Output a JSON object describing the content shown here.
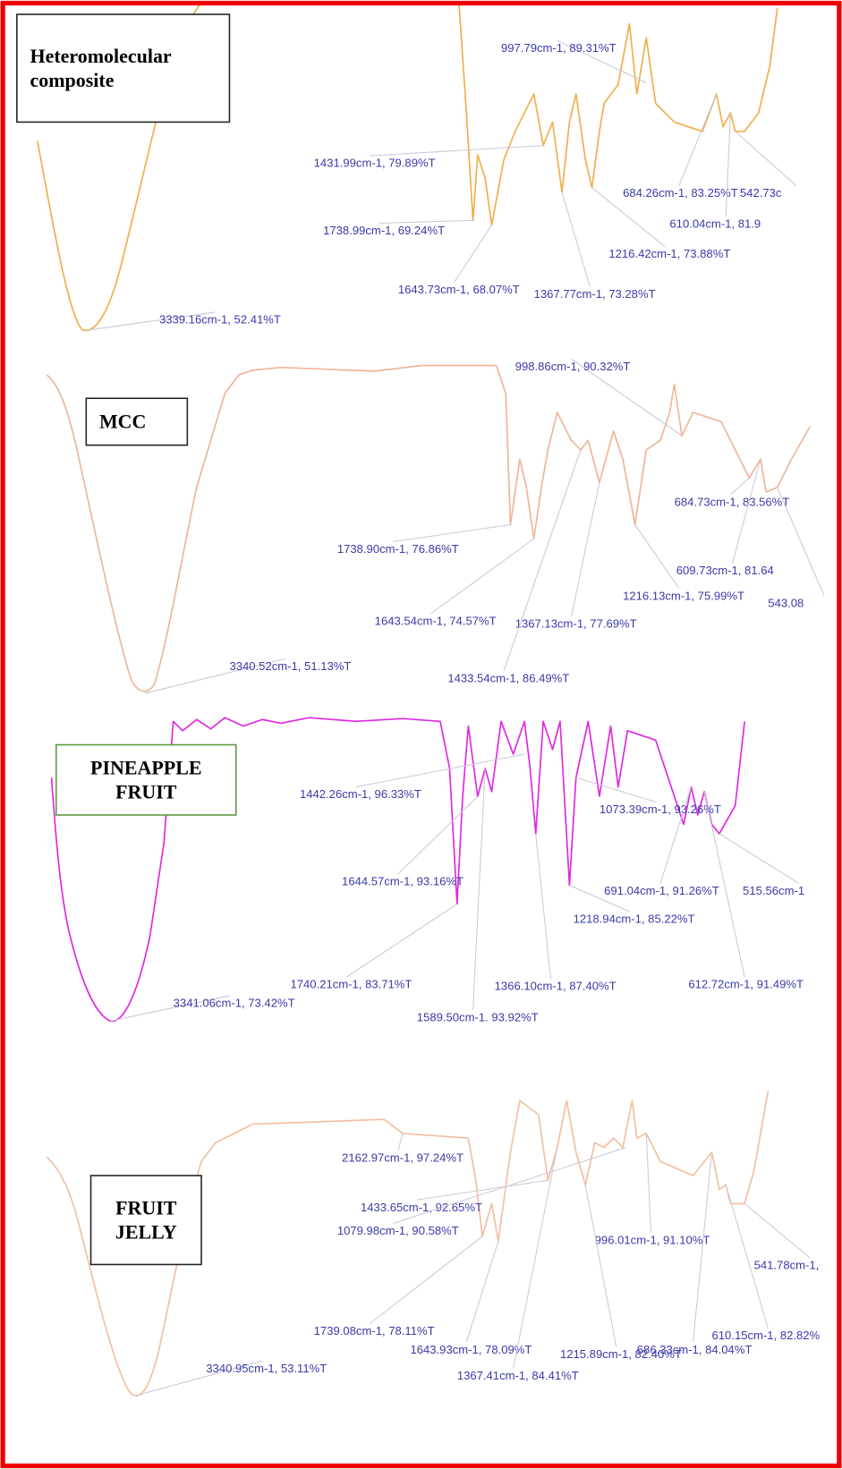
{
  "panels": [
    {
      "label_lines": [
        "Heteromolecular",
        "composite"
      ],
      "annotations": [
        "997.79cm-1, 89.31%T",
        "1431.99cm-1, 79.89%T",
        "684.26cm-1, 83.25%T",
        "542.73c",
        "610.04cm-1, 81.9",
        "1738.99cm-1, 69.24%T",
        "1216.42cm-1, 73.88%T",
        "1643.73cm-1, 68.07%T",
        "1367.77cm-1, 73.28%T",
        "3339.16cm-1, 52.41%T"
      ]
    },
    {
      "label_lines": [
        "MCC"
      ],
      "annotations": [
        "998.86cm-1, 90.32%T",
        "684.73cm-1, 83.56%T",
        "1738.90cm-1, 76.86%T",
        "609.73cm-1, 81.64",
        "1216.13cm-1, 75.99%T",
        "543.08",
        "1643.54cm-1, 74.57%T",
        "1367.13cm-1, 77.69%T",
        "3340.52cm-1, 51.13%T",
        "1433.54cm-1, 86.49%T"
      ]
    },
    {
      "label_lines": [
        "PINEAPPLE",
        "FRUIT"
      ],
      "annotations": [
        "1442.26cm-1, 96.33%T",
        "1073.39cm-1, 93.26%T",
        "1644.57cm-1, 93.16%T",
        "691.04cm-1, 91.26%T",
        "515.56cm-1",
        "1218.94cm-1, 85.22%T",
        "1740.21cm-1, 83.71%T",
        "1366.10cm-1, 87.40%T",
        "612.72cm-1, 91.49%T",
        "3341.06cm-1, 73.42%T",
        "1589.50cm-1. 93.92%T"
      ]
    },
    {
      "label_lines": [
        "FRUIT",
        "JELLY"
      ],
      "annotations": [
        "2162.97cm-1, 97.24%T",
        "1433.65cm-1, 92.65%T",
        "1079.98cm-1, 90.58%T",
        "996.01cm-1, 91.10%T",
        "541.78cm-1,",
        "1739.08cm-1, 78.11%T",
        "610.15cm-1, 82.82%",
        "686.33cm-1, 84.04%T",
        "1643.93cm-1, 78.09%T",
        "1215.89cm-1, 82.40%T",
        "3340.95cm-1, 53.11%T",
        "1367.41cm-1, 84.41%T"
      ]
    }
  ]
}
